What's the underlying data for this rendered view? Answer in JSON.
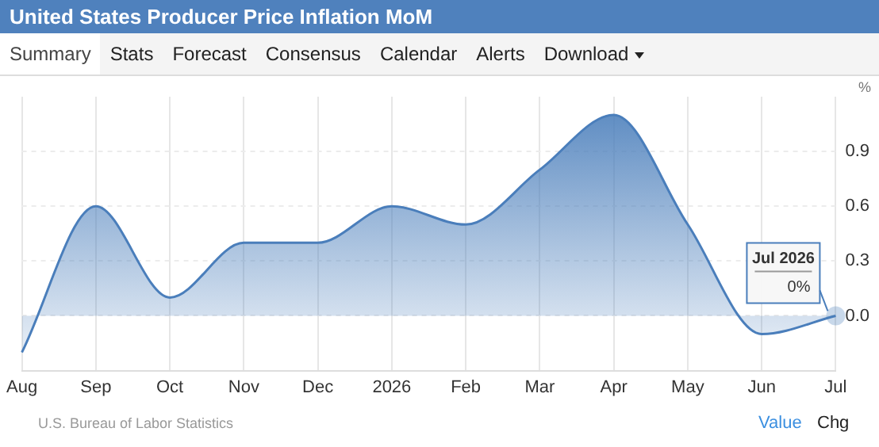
{
  "chart_data": {
    "type": "area",
    "title": "United States Producer Price Inflation MoM",
    "ylabel": "%",
    "categories": [
      "Aug",
      "Sep",
      "Oct",
      "Nov",
      "Dec",
      "2026",
      "Feb",
      "Mar",
      "Apr",
      "May",
      "Jun",
      "Jul"
    ],
    "series": [
      {
        "color": "#4a7ebb",
        "values": [
          -0.2,
          0.6,
          0.1,
          0.4,
          0.4,
          0.6,
          0.5,
          0.8,
          1.1,
          0.5,
          -0.1,
          0
        ]
      }
    ],
    "ylim": [
      -0.3,
      1.2
    ],
    "yticks": [
      {
        "value": 0,
        "label": "0.0"
      },
      0.3,
      0.6,
      0.9
    ],
    "grid": true,
    "legend": false,
    "marker": "none",
    "annotations": [
      "Summary",
      "Stats",
      "Forecast",
      "Consensus",
      "Calendar",
      "Alerts",
      "Download",
      "U.S. Bureau of Labor Statistics",
      "Value",
      "Chg",
      "Jul 2026",
      {
        "text": "0%",
        "x": "Jul",
        "y": 0
      }
    ]
  }
}
